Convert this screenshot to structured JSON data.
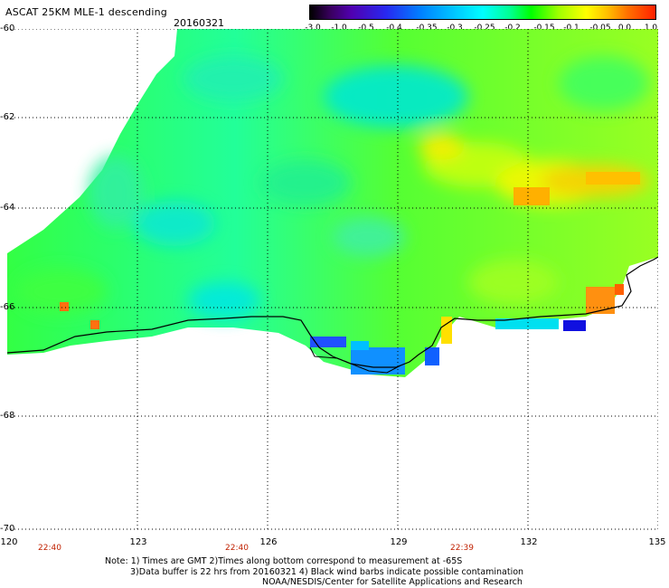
{
  "title": "ASCAT 25KM MLE-1 descending",
  "date": "20160321",
  "colorbar": {
    "labels": [
      "-3.0",
      "-1.0",
      "-0.5",
      "-0.4",
      "-0.35",
      "-0.3",
      "-0.25",
      "-0.2",
      "-0.15",
      "-0.1",
      "-0.05",
      "0.0",
      "1.0"
    ]
  },
  "map": {
    "lat_labels": [
      "-60",
      "-62",
      "-64",
      "-66",
      "-68",
      "-70"
    ],
    "lon_labels": [
      "120",
      "123",
      "126",
      "129",
      "132",
      "135"
    ],
    "time_labels": [
      "22:40",
      "22:40",
      "22:39"
    ]
  },
  "notes": {
    "line1": "Note: 1) Times are GMT 2)Times along bottom correspond to measurement at -65S",
    "line2": "3)Data buffer is 22 hrs from 20160321 4) Black wind barbs indicate possible contamination",
    "line3": "NOAA/NESDIS/Center for Satellite Applications and Research"
  }
}
